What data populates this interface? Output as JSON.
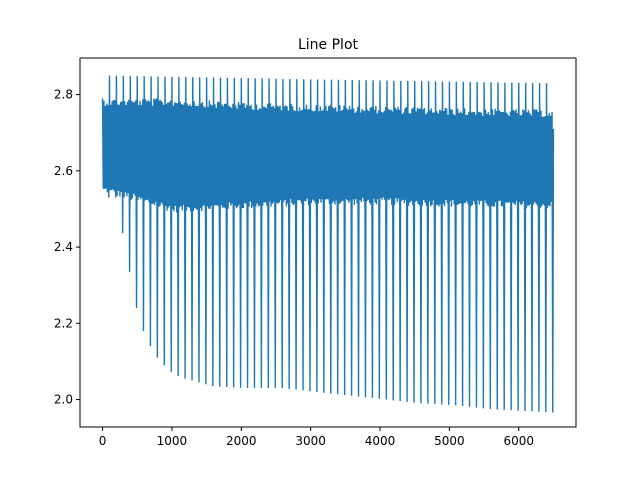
{
  "chart_data": {
    "type": "line",
    "title": "Line Plot",
    "xlabel": "",
    "ylabel": "",
    "xlim": [
      -325,
      6825
    ],
    "ylim": [
      1.928,
      2.896
    ],
    "xticks": [
      0,
      1000,
      2000,
      3000,
      4000,
      5000,
      6000
    ],
    "xtick_labels": [
      "0",
      "1000",
      "2000",
      "3000",
      "4000",
      "5000",
      "6000"
    ],
    "yticks": [
      2.0,
      2.2,
      2.4,
      2.6,
      2.8
    ],
    "ytick_labels": [
      "2.0",
      "2.2",
      "2.4",
      "2.6",
      "2.8"
    ],
    "grid": false,
    "legend": "none",
    "colors": {
      "line": "#1f77b4"
    },
    "series": [
      {
        "description": "dense oscillating series with periodic deep dips",
        "x_range": [
          0,
          6500
        ],
        "cycle_period": 100,
        "band_upper": [
          [
            0,
            2.79
          ],
          [
            1000,
            2.79
          ],
          [
            2000,
            2.78
          ],
          [
            3000,
            2.775
          ],
          [
            4000,
            2.77
          ],
          [
            5000,
            2.765
          ],
          [
            6500,
            2.76
          ]
        ],
        "band_lower": [
          [
            0,
            2.54
          ],
          [
            1000,
            2.49
          ],
          [
            2000,
            2.5
          ],
          [
            3000,
            2.51
          ],
          [
            4000,
            2.51
          ],
          [
            5000,
            2.505
          ],
          [
            6500,
            2.5
          ]
        ],
        "peak_max": [
          [
            0,
            2.79
          ],
          [
            100,
            2.85
          ],
          [
            3000,
            2.84
          ],
          [
            6400,
            2.83
          ]
        ],
        "dip_min": [
          [
            100,
            2.53
          ],
          [
            250,
            2.39
          ],
          [
            350,
            2.28
          ],
          [
            450,
            2.2
          ],
          [
            550,
            2.16
          ],
          [
            650,
            2.12
          ],
          [
            750,
            2.1
          ],
          [
            850,
            2.08
          ],
          [
            950,
            2.065
          ],
          [
            1100,
            2.055
          ],
          [
            1300,
            2.045
          ],
          [
            1500,
            2.035
          ],
          [
            2000,
            2.03
          ],
          [
            2500,
            2.03
          ],
          [
            3000,
            2.02
          ],
          [
            3500,
            2.01
          ],
          [
            4000,
            2.0
          ],
          [
            4500,
            1.99
          ],
          [
            5000,
            1.985
          ],
          [
            5500,
            1.975
          ],
          [
            6000,
            1.97
          ],
          [
            6500,
            1.965
          ]
        ]
      }
    ]
  }
}
